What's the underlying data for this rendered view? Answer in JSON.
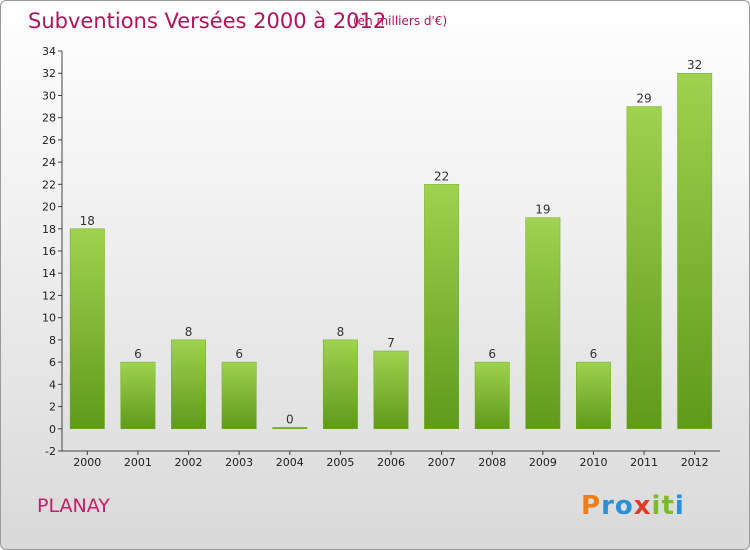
{
  "header": {
    "title": "Subventions Versées 2000 à 2012",
    "subtitle": "(en milliers d'€)"
  },
  "footer": {
    "place": "PLANAY",
    "logo_letters": [
      "P",
      "r",
      "o",
      "x",
      "i",
      "t",
      "i"
    ],
    "logo_colors": [
      "#f07c16",
      "#2a8fd6",
      "#2a8fd6",
      "#e23b2e",
      "#7dbb2c",
      "#7dbb2c",
      "#2a8fd6"
    ]
  },
  "chart_data": {
    "type": "bar",
    "title": "Subventions Versées 2000 à 2012",
    "subtitle": "(en milliers d'€)",
    "categories": [
      "2000",
      "2001",
      "2002",
      "2003",
      "2004",
      "2005",
      "2006",
      "2007",
      "2008",
      "2009",
      "2010",
      "2011",
      "2012"
    ],
    "values": [
      18,
      6,
      8,
      6,
      0,
      8,
      7,
      22,
      6,
      19,
      6,
      29,
      32
    ],
    "value_labels": [
      "18",
      "6",
      "8",
      "6",
      "0",
      "8",
      "7",
      "22",
      "6",
      "19",
      "6",
      "29",
      "32"
    ],
    "ylim": [
      -2,
      34
    ],
    "yticks": [
      -2,
      0,
      2,
      4,
      6,
      8,
      10,
      12,
      14,
      16,
      18,
      20,
      22,
      24,
      26,
      28,
      30,
      32,
      34
    ],
    "grid": false,
    "bar_color": "#8cc63f",
    "bar_color_dark": "#5f9a1a",
    "xlabel": "",
    "ylabel": ""
  }
}
